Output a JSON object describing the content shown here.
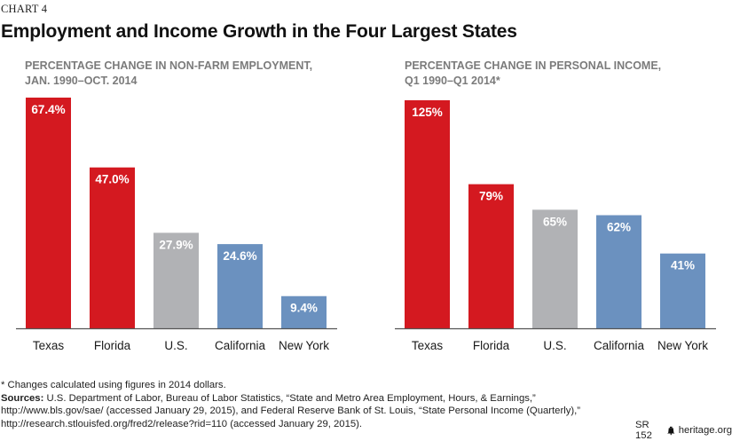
{
  "header": {
    "chart_number": "CHART 4",
    "title": "Employment and Income Growth in the Four Largest States"
  },
  "colors": {
    "red": "#d41920",
    "gray": "#b1b2b5",
    "blue": "#6b91bf",
    "axis": "#555555",
    "subtitle": "#7b7b7b"
  },
  "chart_data": [
    {
      "type": "bar",
      "title": "PERCENTAGE CHANGE IN NON-FARM EMPLOYMENT, JAN. 1990–OCT. 2014",
      "title_lines": [
        "PERCENTAGE CHANGE IN NON-FARM EMPLOYMENT,",
        "JAN. 1990–OCT. 2014"
      ],
      "categories": [
        "Texas",
        "Florida",
        "U.S.",
        "California",
        "New York"
      ],
      "values": [
        67.4,
        47.0,
        27.9,
        24.6,
        9.4
      ],
      "value_labels": [
        "67.4%",
        "47.0%",
        "27.9%",
        "24.6%",
        "9.4%"
      ],
      "bar_colors": [
        "red",
        "red",
        "gray",
        "blue",
        "blue"
      ],
      "unit": "%",
      "xlabel": "",
      "ylabel": "",
      "ylim": [
        0,
        67.4
      ],
      "grid": false,
      "legend": "none"
    },
    {
      "type": "bar",
      "title": "PERCENTAGE CHANGE IN PERSONAL INCOME, Q1 1990–Q1 2014*",
      "title_lines": [
        "PERCENTAGE CHANGE IN PERSONAL INCOME,",
        "Q1 1990–Q1 2014*"
      ],
      "categories": [
        "Texas",
        "Florida",
        "U.S.",
        "California",
        "New York"
      ],
      "values": [
        125,
        79,
        65,
        62,
        41
      ],
      "value_labels": [
        "125%",
        "79%",
        "65%",
        "62%",
        "41%"
      ],
      "bar_colors": [
        "red",
        "red",
        "gray",
        "blue",
        "blue"
      ],
      "unit": "%",
      "xlabel": "",
      "ylabel": "",
      "ylim": [
        0,
        125
      ],
      "grid": false,
      "legend": "none"
    }
  ],
  "footer": {
    "note": "* Changes calculated using figures in 2014 dollars.",
    "sources_label": "Sources:",
    "sources_text": " U.S. Department of Labor, Bureau of Labor Statistics, “State and Metro Area Employment, Hours, & Earnings,” http://www.bls.gov/sae/ (accessed January 29, 2015), and Federal Reserve Bank of St. Louis, “State Personal Income (Quarterly),” http://research.stlouisfed.org/fred2/release?rid=110 (accessed January 29, 2015).",
    "report_id": "SR 152",
    "logo_icon": "liberty-bell-icon",
    "site": "heritage.org"
  }
}
